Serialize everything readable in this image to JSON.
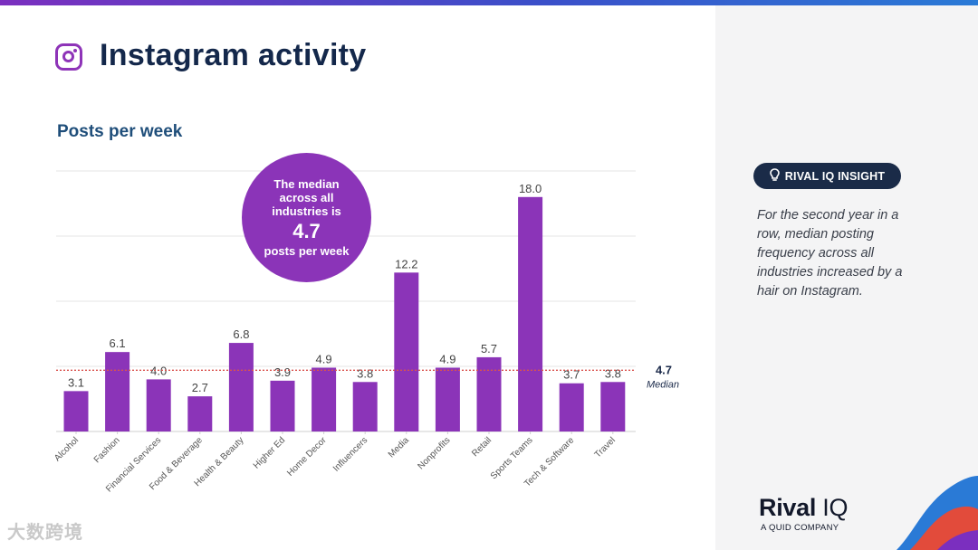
{
  "page": {
    "title": "Instagram activity",
    "icon": "instagram-icon",
    "accent": "#8b34b8"
  },
  "bubble": {
    "text_top": "The median across all industries is",
    "value": "4.7",
    "text_bottom": "posts per week"
  },
  "insight": {
    "badge": "RIVAL IQ INSIGHT",
    "badge_icon": "lightbulb-icon",
    "text": "For the second year in a row, median posting frequency across all industries increased by a hair on Instagram."
  },
  "brand": {
    "name_a": "Rival",
    "name_b": "IQ",
    "sub": "A QUID COMPANY"
  },
  "watermark": "大数跨境",
  "chart_data": {
    "type": "bar",
    "title": "Posts per week",
    "categories": [
      "Alcohol",
      "Fashion",
      "Financial Services",
      "Food & Beverage",
      "Health & Beauty",
      "Higher Ed",
      "Home Decor",
      "Influencers",
      "Media",
      "Nonprofits",
      "Retail",
      "Sports Teams",
      "Tech & Software",
      "Travel"
    ],
    "values": [
      3.1,
      6.1,
      4.0,
      2.7,
      6.8,
      3.9,
      4.9,
      3.8,
      12.2,
      4.9,
      5.7,
      18.0,
      3.7,
      3.8
    ],
    "value_labels": [
      "3.1",
      "6.1",
      "4.0",
      "2.7",
      "6.8",
      "3.9",
      "4.9",
      "3.8",
      "12.2",
      "4.9",
      "5.7",
      "18.0",
      "3.7",
      "3.8"
    ],
    "median": 4.7,
    "median_value_label": "4.7",
    "median_label": "Median",
    "ylim": [
      0,
      20
    ],
    "gridlines": [
      5,
      10,
      15,
      20
    ],
    "bar_color": "#8b34b8",
    "median_color": "#d9534f",
    "xlabel": "",
    "ylabel": ""
  }
}
